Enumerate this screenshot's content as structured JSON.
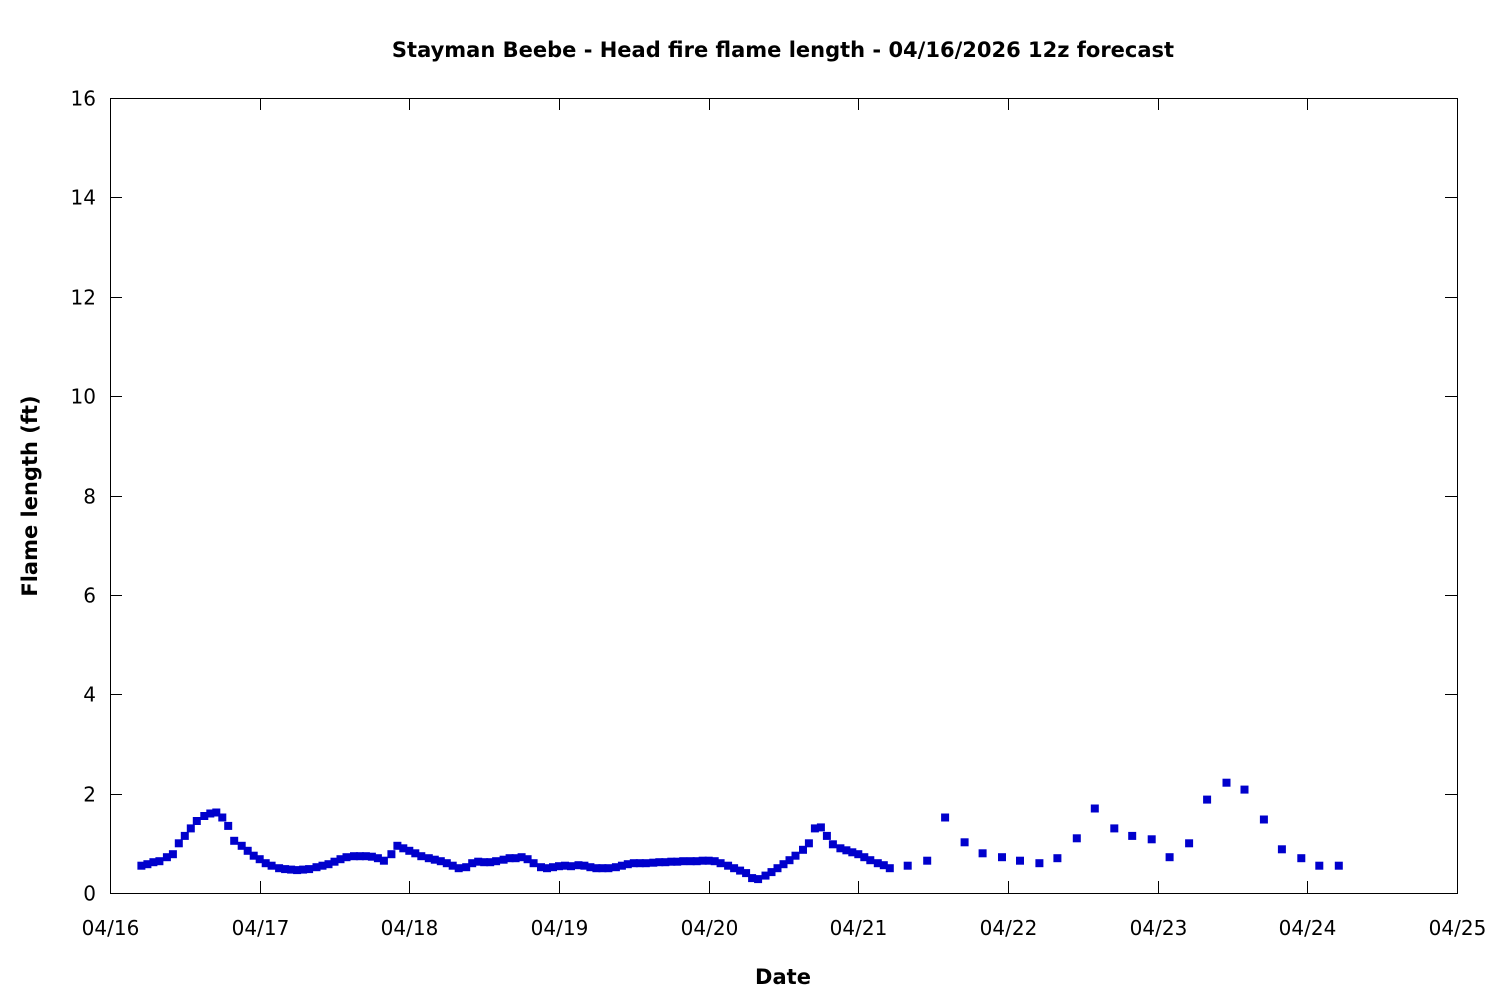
{
  "chart_data": {
    "type": "scatter",
    "title": "Stayman Beebe - Head fire flame length - 04/16/2026 12z forecast",
    "xlabel": "Date",
    "ylabel": "Flame length (ft)",
    "x_unit": "days since 04/16",
    "xlim": [
      0,
      9
    ],
    "ylim": [
      0,
      16
    ],
    "x_ticks": [
      {
        "value": 0,
        "label": "04/16"
      },
      {
        "value": 1,
        "label": "04/17"
      },
      {
        "value": 2,
        "label": "04/18"
      },
      {
        "value": 3,
        "label": "04/19"
      },
      {
        "value": 4,
        "label": "04/20"
      },
      {
        "value": 5,
        "label": "04/21"
      },
      {
        "value": 6,
        "label": "04/22"
      },
      {
        "value": 7,
        "label": "04/23"
      },
      {
        "value": 8,
        "label": "04/24"
      },
      {
        "value": 9,
        "label": "04/25"
      }
    ],
    "y_ticks": [
      0,
      2,
      4,
      6,
      8,
      10,
      12,
      14,
      16
    ],
    "grid": false,
    "legend": "none",
    "marker_color": "#0000cc",
    "series": [
      {
        "name": "Head fire flame length",
        "x": [
          0.21,
          0.25,
          0.29,
          0.33,
          0.38,
          0.42,
          0.46,
          0.5,
          0.54,
          0.58,
          0.63,
          0.67,
          0.71,
          0.75,
          0.79,
          0.83,
          0.88,
          0.92,
          0.96,
          1.0,
          1.04,
          1.08,
          1.13,
          1.17,
          1.21,
          1.25,
          1.29,
          1.33,
          1.38,
          1.42,
          1.46,
          1.5,
          1.54,
          1.58,
          1.63,
          1.67,
          1.71,
          1.75,
          1.79,
          1.83,
          1.88,
          1.92,
          1.96,
          2.0,
          2.04,
          2.08,
          2.13,
          2.17,
          2.21,
          2.25,
          2.29,
          2.33,
          2.38,
          2.42,
          2.46,
          2.5,
          2.54,
          2.58,
          2.63,
          2.67,
          2.71,
          2.75,
          2.79,
          2.83,
          2.88,
          2.92,
          2.96,
          3.0,
          3.04,
          3.08,
          3.13,
          3.17,
          3.21,
          3.25,
          3.29,
          3.33,
          3.38,
          3.42,
          3.46,
          3.5,
          3.54,
          3.58,
          3.63,
          3.67,
          3.71,
          3.75,
          3.79,
          3.83,
          3.88,
          3.92,
          3.96,
          4.0,
          4.04,
          4.08,
          4.13,
          4.17,
          4.21,
          4.25,
          4.29,
          4.33,
          4.38,
          4.42,
          4.46,
          4.5,
          4.54,
          4.58,
          4.63,
          4.67,
          4.71,
          4.75,
          4.79,
          4.83,
          4.88,
          4.92,
          4.96,
          5.0,
          5.04,
          5.08,
          5.13,
          5.17,
          5.21,
          5.33,
          5.46,
          5.58,
          5.71,
          5.83,
          5.96,
          6.08,
          6.21,
          6.33,
          6.46,
          6.58,
          6.71,
          6.83,
          6.96,
          7.08,
          7.21,
          7.33,
          7.46,
          7.58,
          7.71,
          7.83,
          7.96,
          8.08,
          8.21
        ],
        "y": [
          0.55,
          0.58,
          0.62,
          0.64,
          0.72,
          0.78,
          1.0,
          1.15,
          1.3,
          1.45,
          1.55,
          1.6,
          1.62,
          1.52,
          1.35,
          1.05,
          0.95,
          0.85,
          0.75,
          0.68,
          0.6,
          0.55,
          0.5,
          0.48,
          0.47,
          0.46,
          0.47,
          0.48,
          0.52,
          0.55,
          0.58,
          0.63,
          0.68,
          0.72,
          0.74,
          0.74,
          0.74,
          0.73,
          0.7,
          0.65,
          0.78,
          0.95,
          0.9,
          0.85,
          0.8,
          0.74,
          0.7,
          0.67,
          0.64,
          0.6,
          0.55,
          0.5,
          0.52,
          0.6,
          0.63,
          0.62,
          0.62,
          0.64,
          0.67,
          0.7,
          0.7,
          0.72,
          0.68,
          0.6,
          0.52,
          0.5,
          0.52,
          0.54,
          0.55,
          0.54,
          0.56,
          0.55,
          0.52,
          0.5,
          0.5,
          0.5,
          0.52,
          0.55,
          0.58,
          0.6,
          0.6,
          0.6,
          0.61,
          0.62,
          0.62,
          0.63,
          0.63,
          0.64,
          0.64,
          0.64,
          0.65,
          0.65,
          0.64,
          0.6,
          0.55,
          0.5,
          0.45,
          0.4,
          0.3,
          0.28,
          0.35,
          0.42,
          0.5,
          0.58,
          0.66,
          0.75,
          0.87,
          1.0,
          1.3,
          1.32,
          1.15,
          0.98,
          0.9,
          0.86,
          0.82,
          0.78,
          0.72,
          0.66,
          0.6,
          0.56,
          0.5,
          0.55,
          0.65,
          1.52,
          1.02,
          0.8,
          0.72,
          0.65,
          0.6,
          0.7,
          1.1,
          1.7,
          1.3,
          1.15,
          1.08,
          0.72,
          1.0,
          1.88,
          2.22,
          2.08,
          1.48,
          0.88,
          0.7,
          0.55,
          0.55
        ]
      }
    ]
  }
}
